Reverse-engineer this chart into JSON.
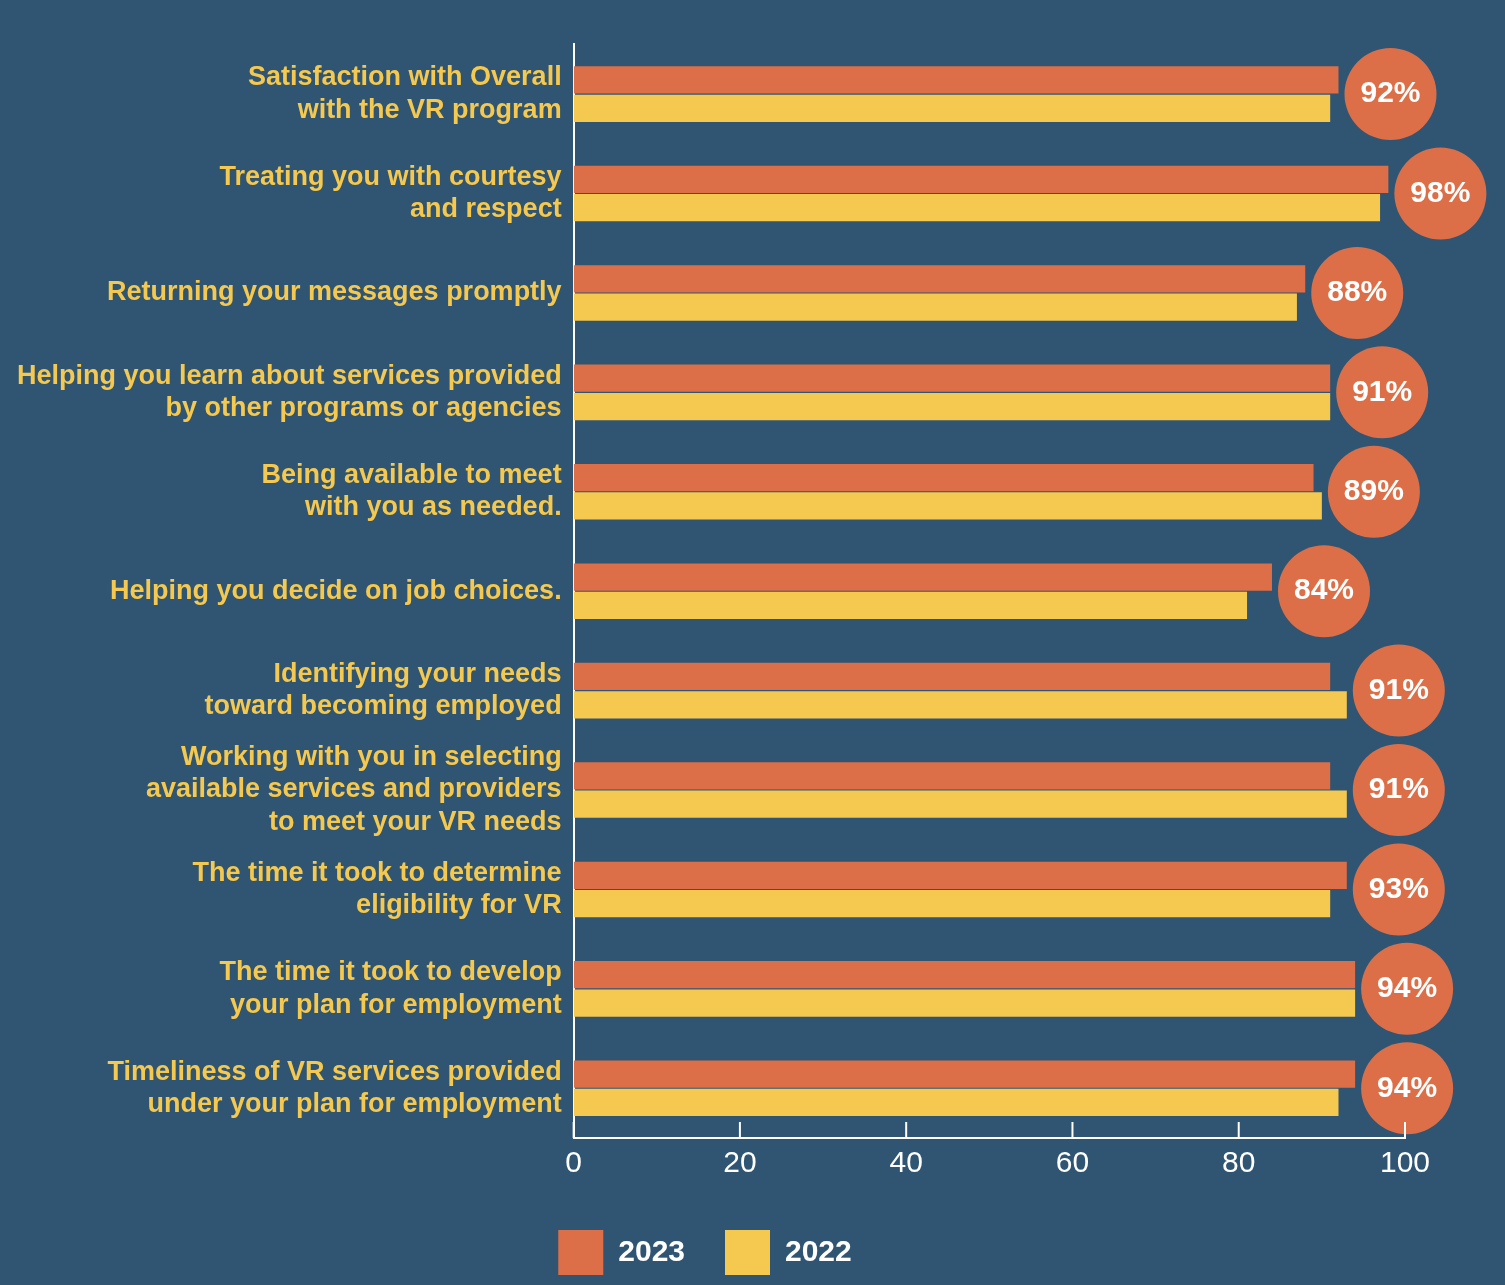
{
  "chart_data": {
    "type": "bar",
    "orientation": "horizontal",
    "categories": [
      "Satisfaction with Overall\nwith the VR program",
      "Treating you with courtesy\nand respect",
      "Returning your messages promptly",
      "Helping you learn about services provided\nby other programs or agencies",
      "Being available to meet\nwith you as needed.",
      "Helping you decide on job choices.",
      "Identifying your needs\ntoward becoming employed",
      "Working with you in selecting\navailable services and providers\nto meet your VR needs",
      "The time it took to determine\neligibility for VR",
      "The time it took to develop\nyour plan for employment",
      "Timeliness of VR services provided\nunder your plan for employment"
    ],
    "series": [
      {
        "name": "2023",
        "color": "#dc6f47",
        "values": [
          92,
          98,
          88,
          91,
          89,
          84,
          91,
          91,
          93,
          94,
          94
        ],
        "value_labels": [
          "92%",
          "98%",
          "88%",
          "91%",
          "89%",
          "84%",
          "91%",
          "91%",
          "93%",
          "94%",
          "94%"
        ]
      },
      {
        "name": "2022",
        "color": "#f5c94f",
        "values": [
          91,
          97,
          87,
          91,
          90,
          81,
          93,
          93,
          91,
          94,
          92
        ]
      }
    ],
    "xlim": [
      0,
      100
    ],
    "xticks": [
      0,
      20,
      40,
      60,
      80,
      100
    ],
    "grid": false,
    "legend": "bottom"
  }
}
